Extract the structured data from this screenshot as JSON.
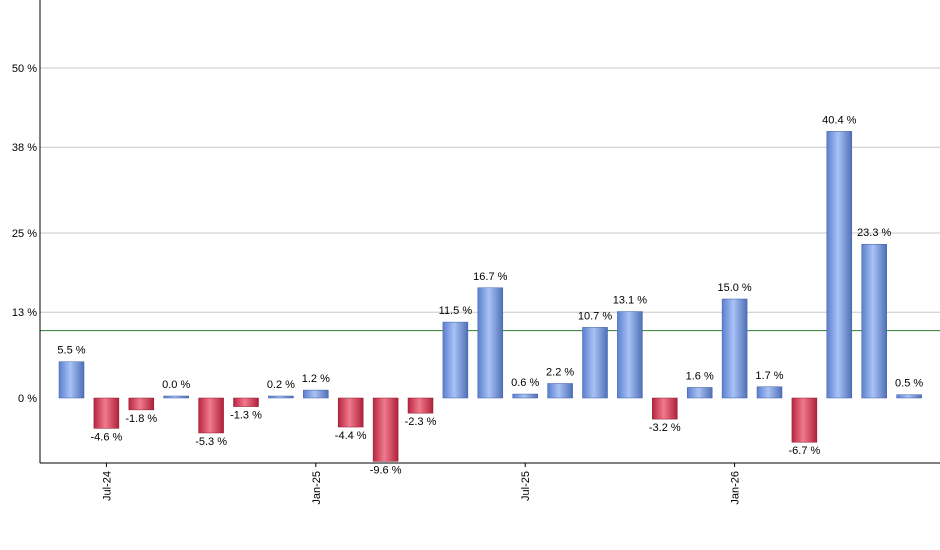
{
  "chart_data": {
    "type": "bar",
    "y_unit_suffix": " %",
    "ylim": [
      -10,
      53
    ],
    "y_ticks": [
      0,
      13,
      25,
      38,
      50
    ],
    "y_tick_labels": [
      "0 %",
      "13 %",
      "25 %",
      "38 %",
      "50 %"
    ],
    "grid": true,
    "reference_line": {
      "value": 10.2,
      "color": "#2e7d32"
    },
    "x_tick_labels": [
      {
        "index": 1,
        "label": "Jul-24"
      },
      {
        "index": 7,
        "label": "Jan-25"
      },
      {
        "index": 13,
        "label": "Jul-25"
      },
      {
        "index": 19,
        "label": "Jan-26"
      }
    ],
    "values": [
      5.5,
      -4.6,
      -1.8,
      0.0,
      -5.3,
      -1.3,
      0.2,
      1.2,
      -4.4,
      -9.6,
      -2.3,
      11.5,
      16.7,
      0.6,
      2.2,
      10.7,
      13.1,
      -3.2,
      1.6,
      15.0,
      1.7,
      -6.7,
      40.4,
      23.3,
      0.5
    ],
    "data_labels": [
      "5.5 %",
      "-4.6 %",
      "-1.8 %",
      "0.0 %",
      "-5.3 %",
      "-1.3 %",
      "0.2 %",
      "1.2 %",
      "-4.4 %",
      "-9.6 %",
      "-2.3 %",
      "11.5 %",
      "16.7 %",
      "0.6 %",
      "2.2 %",
      "10.7 %",
      "13.1 %",
      "-3.2 %",
      "1.6 %",
      "15.0 %",
      "1.7 %",
      "-6.7 %",
      "40.4 %",
      "23.3 %",
      "0.5 %"
    ],
    "colors": {
      "positive": "#7b9ce0",
      "negative": "#d8405c",
      "grid": "#c8c8c8",
      "axis": "#000000"
    }
  }
}
